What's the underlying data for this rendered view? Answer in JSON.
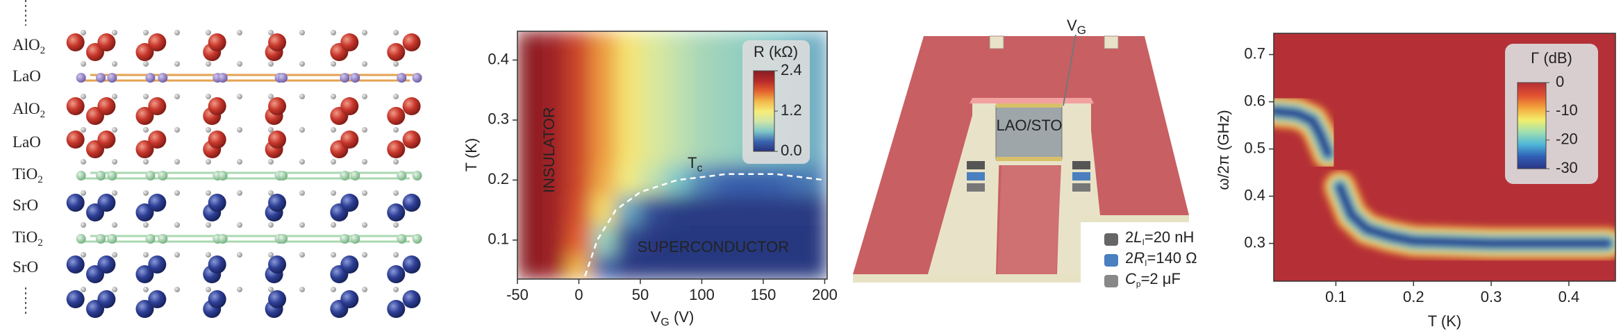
{
  "crystal": {
    "layers": [
      {
        "main": "AlO",
        "sub": "2"
      },
      {
        "main": "LaO"
      },
      {
        "main": "AlO",
        "sub": "2"
      },
      {
        "main": "LaO"
      },
      {
        "main": "TiO",
        "sub": "2"
      },
      {
        "main": "SrO"
      },
      {
        "main": "TiO",
        "sub": "2"
      },
      {
        "main": "SrO"
      }
    ]
  },
  "chart_data": [
    {
      "type": "heatmap",
      "xlabel": {
        "main": "V",
        "sub": "G",
        "rest": " (V)"
      },
      "ylabel": "T (K)",
      "xlim": [
        -50,
        202
      ],
      "ylim": [
        0.035,
        0.448
      ],
      "xticks": [
        -50,
        0,
        50,
        100,
        150,
        200
      ],
      "yticks": [
        0.1,
        0.2,
        0.3,
        0.4
      ],
      "x": [
        -40,
        -20,
        0,
        20,
        40,
        60,
        80,
        100,
        120,
        140,
        160,
        180,
        200
      ],
      "y": [
        0.05,
        0.1,
        0.15,
        0.2,
        0.25,
        0.3,
        0.35,
        0.4,
        0.45
      ],
      "z": [
        [
          2.4,
          2.25,
          1.5,
          0.25,
          0.04,
          0.03,
          0.03,
          0.03,
          0.03,
          0.03,
          0.03,
          0.03,
          0.03
        ],
        [
          2.4,
          2.25,
          1.8,
          0.7,
          0.12,
          0.04,
          0.03,
          0.03,
          0.03,
          0.03,
          0.03,
          0.03,
          0.03
        ],
        [
          2.4,
          2.25,
          1.9,
          1.3,
          0.5,
          0.15,
          0.06,
          0.05,
          0.05,
          0.05,
          0.05,
          0.05,
          0.05
        ],
        [
          2.4,
          2.25,
          1.95,
          1.55,
          1.15,
          0.85,
          0.6,
          0.4,
          0.3,
          0.28,
          0.3,
          0.35,
          0.4
        ],
        [
          2.4,
          2.25,
          1.95,
          1.6,
          1.25,
          1.0,
          0.85,
          0.75,
          0.7,
          0.65,
          0.6,
          0.55,
          0.5
        ],
        [
          2.4,
          2.25,
          1.95,
          1.6,
          1.25,
          1.0,
          0.85,
          0.75,
          0.7,
          0.65,
          0.6,
          0.55,
          0.5
        ],
        [
          2.4,
          2.25,
          1.95,
          1.6,
          1.25,
          1.0,
          0.85,
          0.75,
          0.7,
          0.65,
          0.6,
          0.55,
          0.5
        ],
        [
          2.4,
          2.25,
          1.95,
          1.6,
          1.25,
          1.0,
          0.85,
          0.75,
          0.7,
          0.65,
          0.6,
          0.55,
          0.5
        ],
        [
          2.4,
          2.25,
          1.95,
          1.6,
          1.25,
          1.0,
          0.85,
          0.75,
          0.7,
          0.65,
          0.6,
          0.55,
          0.5
        ]
      ],
      "zlim": [
        0,
        2.4
      ],
      "colormap": [
        "#26327a",
        "#3a64b0",
        "#7fc6c8",
        "#cfe6a8",
        "#f6ec7a",
        "#f2b84b",
        "#e4622e",
        "#b82a2a",
        "#8a1e22"
      ],
      "colorbar_title": "R (kΩ)",
      "colorbar_ticks": [
        2.4,
        1.2,
        {
          "value": 0,
          "label": "0.0"
        }
      ],
      "tc_curve": {
        "x": [
          5,
          15,
          30,
          50,
          80,
          120,
          160,
          200
        ],
        "values": [
          0.04,
          0.1,
          0.15,
          0.18,
          0.2,
          0.21,
          0.21,
          0.2
        ]
      },
      "annotations": [
        {
          "text": "INSULATOR"
        },
        {
          "text": "SUPERCONDUCTOR"
        },
        {
          "main": "T",
          "sub": "c"
        }
      ]
    },
    {
      "type": "spectrum",
      "xlabel": "T (K)",
      "ylabel": "ω/2π (GHz)",
      "xlim": [
        0.02,
        0.46
      ],
      "ylim": [
        0.22,
        0.745
      ],
      "xticks": [
        0.1,
        0.2,
        0.3,
        0.4
      ],
      "yticks": [
        0.3,
        0.4,
        0.5,
        0.6,
        0.7
      ],
      "background_value": 0,
      "ridges": [
        {
          "x": [
            0.02,
            0.05,
            0.07,
            0.08,
            0.09
          ],
          "values": [
            0.58,
            0.575,
            0.56,
            0.53,
            0.49
          ],
          "depth": -30
        },
        {
          "x": [
            0.105,
            0.12,
            0.14,
            0.17,
            0.2,
            0.3,
            0.45
          ],
          "values": [
            0.42,
            0.36,
            0.33,
            0.315,
            0.305,
            0.3,
            0.3
          ],
          "depth": -30
        }
      ],
      "zlim": [
        -30,
        0
      ],
      "colormap": [
        "#2c3585",
        "#2f5db5",
        "#4fb7d8",
        "#9fe0b0",
        "#f4ee6a",
        "#f3a43c",
        "#e05030",
        "#b53036"
      ],
      "colorbar_title": "Γ (dB)",
      "colorbar_ticks": [
        0,
        -10,
        -20,
        -30
      ]
    }
  ],
  "device": {
    "gate_label": {
      "main": "V",
      "sub": "G"
    },
    "sample_label": "LAO/STO",
    "legend": [
      {
        "pre": "2",
        "var": "L",
        "sub": "I",
        "rest": "=20 nH"
      },
      {
        "pre": "2",
        "var": "R",
        "sub": "I",
        "rest": "=140 Ω"
      },
      {
        "var": "C",
        "sub": "p",
        "rest": "=2 μF"
      }
    ]
  }
}
